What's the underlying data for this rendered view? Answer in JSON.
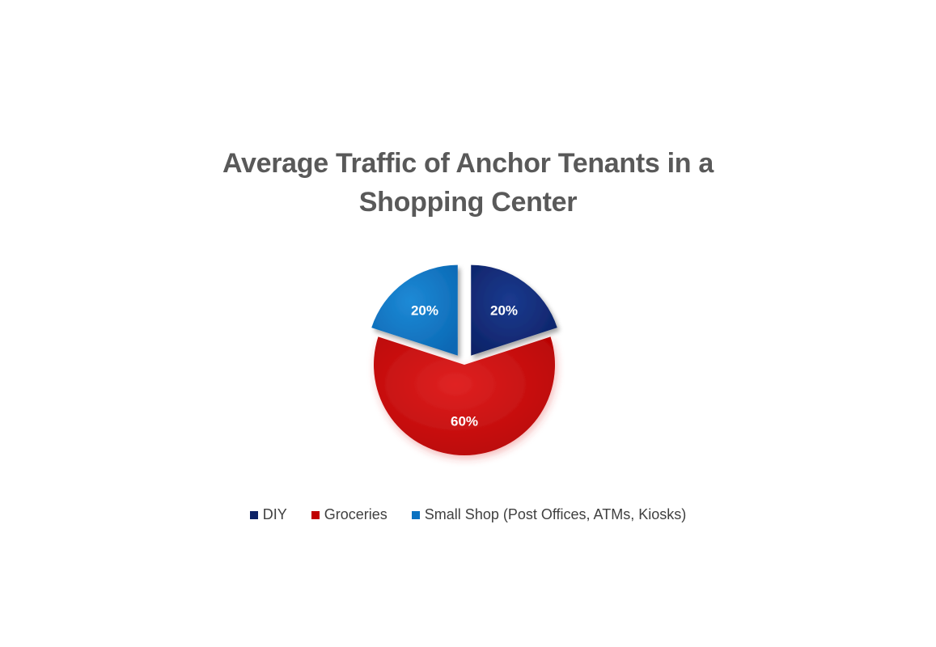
{
  "chart_data": {
    "type": "pie",
    "title": "Average Traffic of Anchor Tenants in a Shopping Center",
    "title_lines": [
      "Average Traffic of Anchor Tenants in a",
      "Shopping Center"
    ],
    "legend_position": "bottom",
    "slices": [
      {
        "name": "DIY",
        "value": 20,
        "label": "20%",
        "color": "#0d2266",
        "exploded": true
      },
      {
        "name": "Groceries",
        "value": 60,
        "label": "60%",
        "color": "#c00000",
        "exploded": false
      },
      {
        "name": "Small Shop (Post Offices, ATMs, Kiosks)",
        "value": 20,
        "label": "20%",
        "color": "#0b72c1",
        "exploded": true
      }
    ]
  }
}
